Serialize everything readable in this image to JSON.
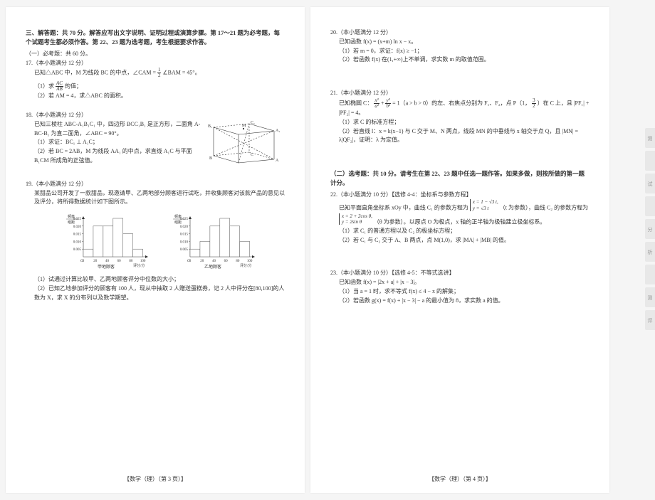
{
  "left_page": {
    "section_header": "三、解答题：共 70 分。解答应写出文字说明、证明过程或演算步骤。第 17～21 题为必考题，每个试题考生都必须作答。第 22、23 题为选考题，考生根据要求作答。",
    "required_header": "（一）必考题：共 60 分。",
    "q17": {
      "head": "17.（本小题满分 12 分）",
      "line1": "已知△ABC 中，M 为线段 BC 的中点，∠CAM = ",
      "line1b": " ∠BAM = 45°。",
      "part1": "（1）求",
      "part1b": "的值；",
      "part2": "（2）若 AM = 4，求△ABC 的面积。"
    },
    "q18": {
      "head": "18.（本小题满分 12 分）",
      "line1": "已知三棱柱 ABC-A₁B₁C₁ 中，四边形 BCC₁B₁ 是正方形，二面角 A-BC-B₁ 为直二面角，∠ABC = 90°。",
      "part1": "（1）求证：BC₁ ⊥ A₁C；",
      "part2": "（2）若 BC = 2AB，M 为线段 AA₁ 的中点，求直线 A₁C 与平面 B₁CM 所成角的正弦值。"
    },
    "q19": {
      "head": "19.（本小题满分 12 分）",
      "line1": "某甜品公司开发了一款甜品，现邀请甲、乙两地部分顾客进行试吃，并收集顾客对该款产品的意见以及评分，将所得数据统计如下图所示。",
      "chart_a": {
        "title": "甲地顾客",
        "ylabel": "频率/组距",
        "yticks": [
          "0.005",
          "0.010",
          "0.015",
          "0.020",
          "0.025"
        ],
        "xticks": [
          "0",
          "20",
          "40",
          "60",
          "80",
          "100"
        ],
        "xlabel": "评分/分",
        "bars": [
          0.005,
          0.02,
          0.02,
          0.025,
          0.015,
          0.005
        ],
        "bar_color": "#ffffff",
        "border_color": "#555555",
        "axis_color": "#333333"
      },
      "chart_b": {
        "title": "乙地顾客",
        "ylabel": "频率/组距",
        "yticks": [
          "0.005",
          "0.010",
          "0.015",
          "0.020",
          "0.025"
        ],
        "xticks": [
          "0",
          "20",
          "40",
          "60",
          "80",
          "100"
        ],
        "xlabel": "评分/分",
        "bars": [
          0.005,
          0.01,
          0.02,
          0.025,
          0.02,
          0.01
        ],
        "bar_color": "#ffffff",
        "border_color": "#555555",
        "axis_color": "#333333"
      },
      "part1": "（1）试通过计算比较甲、乙两地顾客评分中位数的大小；",
      "part2": "（2）已知乙地参加评分的顾客有 100 人，现从中抽取 2 人赠送蛋糕券，记 2 人中评分在[80,100]的人数为 X，求 X 的分布列以及数学期望。"
    },
    "footer": "【数学（理）（第 3 页）】",
    "diagram_labels": {
      "M": "M",
      "A1": "A₁",
      "B1": "B₁",
      "C1": "C₁",
      "A": "A",
      "B": "B",
      "C": "C"
    }
  },
  "right_page": {
    "q20": {
      "head": "20.（本小题满分 12 分）",
      "line1": "已知函数 f(x) = (x+m) ln x − x。",
      "part1": "（1）若 m = 0，求证：f(x) ≥ −1；",
      "part2": "（2）若函数 f(x) 在(1,+∞)上不单调，求实数 m 的取值范围。"
    },
    "q21": {
      "head": "21.（本小题满分 12 分）",
      "line1a": "已知椭圆 C：",
      "line1b": " = 1（a > b > 0）的左、右焦点分别为 F₁、F₂，点 P（1，",
      "line1c": "）在 C 上，且 |PF₁| + |PF₂| = 4。",
      "part1": "（1）求 C 的标准方程；",
      "part2": "（2）若直线 l：x = k(x−1) 与 C 交于 M、N 两点，线段 MN 的中垂线与 x 轴交于点 Q，且 |MN| = λ|QF₂|，证明：λ 为定值。"
    },
    "optional_header": "（二）选考题：共 10 分。请考生在第 22、23 题中任选一题作答。如果多做，则按所做的第一题计分。",
    "q22": {
      "head": "22.（本小题满分 10 分）【选修 4-4：坐标系与参数方程】",
      "line1": "已知平面直角坐标系 xOy 中，曲线 C₁ 的参数方程为",
      "line1b": "（t 为参数），曲线 C₂ 的参数方程为",
      "line2": "（θ 为参数）。以原点 O 为极点，x 轴的正半轴为极轴建立极坐标系。",
      "part1": "（1）求 C₁ 的普通方程以及 C₂ 的极坐标方程；",
      "part2": "（2）若 C₁ 与 C₂ 交于 A、B 两点，点 M(1,0)，求 |MA| + |MB| 的值。"
    },
    "q23": {
      "head": "23.（本小题满分 10 分）【选修 4-5：不等式选讲】",
      "line1": "已知函数 f(x) = |2x + a| + |x − 3|。",
      "part1": "（1）当 a = 1 时，求不等式 f(x) ≤ 4 − x 的解集；",
      "part2": "（2）若函数 g(x) = f(x) + |x − 3| − a 的最小值为 8，求实数 a 的值。"
    },
    "footer": "【数学（理）（第 4 页）】"
  },
  "tabs": [
    "测",
    "",
    "试",
    "",
    "分",
    "析",
    "",
    "测",
    "评"
  ]
}
